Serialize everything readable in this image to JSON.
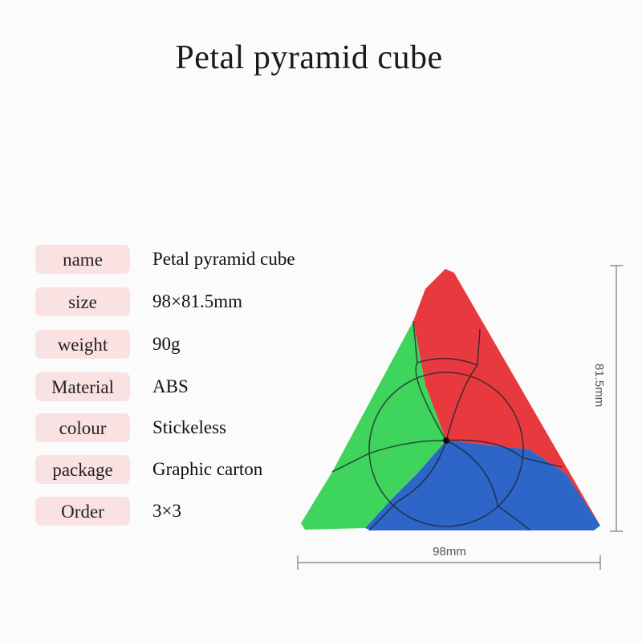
{
  "title": "Petal pyramid cube",
  "specs": [
    {
      "label": "name",
      "value": "Petal pyramid cube"
    },
    {
      "label": "size",
      "value": "98×81.5mm"
    },
    {
      "label": "weight",
      "value": "90g"
    },
    {
      "label": "Material",
      "value": "ABS"
    },
    {
      "label": "colour",
      "value": "Stickeless"
    },
    {
      "label": "package",
      "value": "Graphic carton"
    },
    {
      "label": "Order",
      "value": "3×3"
    }
  ],
  "dimensions": {
    "width_label": "98mm",
    "height_label": "81.5mm"
  },
  "colors": {
    "red": "#e83a3e",
    "green": "#3fd45c",
    "blue": "#2d66c8",
    "label_bg": "#fbe2e2"
  }
}
